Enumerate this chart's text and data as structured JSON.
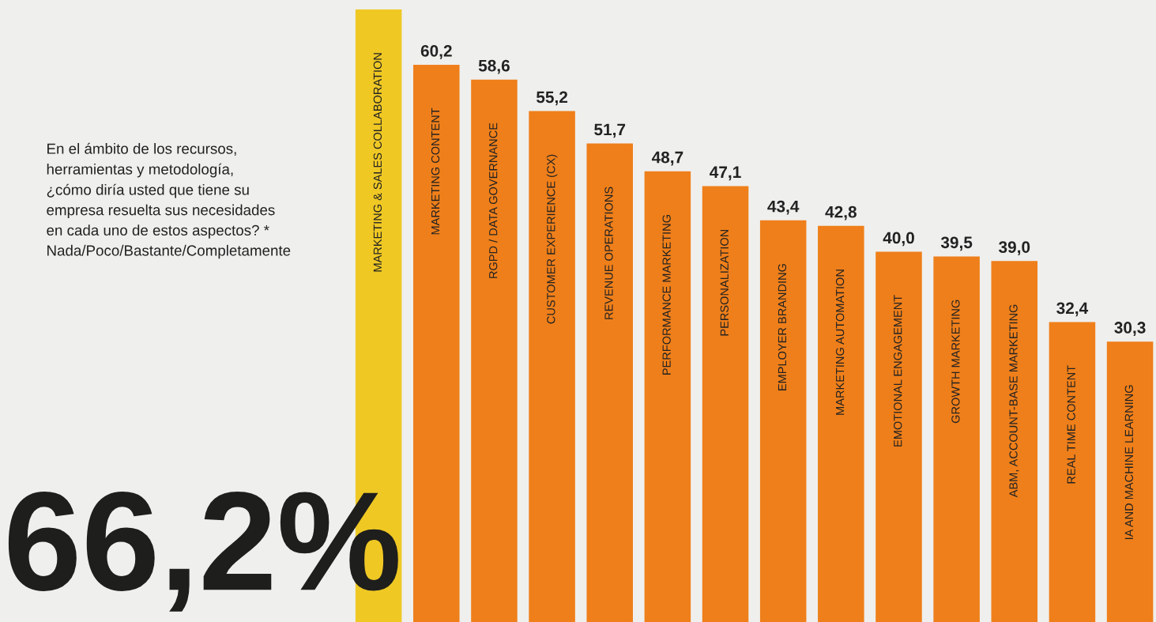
{
  "chart_data": {
    "type": "bar",
    "title": "En el ámbito de los recursos,\nherramientas y metodología,\n¿cómo diría usted que tiene su\nempresa resuelta sus necesidades\nen cada uno de estos aspectos? *\nNada/Poco/Bastante/Completamente",
    "categories": [
      "MARKETING & SALES COLLABORATION",
      "MARKETING CONTENT",
      "RGPD / DATA GOVERNANCE",
      "CUSTOMER EXPERIENCE (CX)",
      "REVENUE OPERATIONS",
      "PERFORMANCE MARKETING",
      "PERSONALIZATION",
      "EMPLOYER BRANDING",
      "MARKETING AUTOMATION",
      "EMOTIONAL ENGAGEMENT",
      "GROWTH MARKETING",
      "ABM, ACCOUNT-BASE MARKETING",
      "REAL TIME CONTENT",
      "IA AND MACHINE LEARNING"
    ],
    "values": [
      66.2,
      60.2,
      58.6,
      55.2,
      51.7,
      48.7,
      47.1,
      43.4,
      42.8,
      40.0,
      39.5,
      39.0,
      32.4,
      30.3
    ],
    "colors": [
      "#efc824",
      "#ef7f1a",
      "#ef7f1a",
      "#ef7f1a",
      "#ef7f1a",
      "#ef7f1a",
      "#ef7f1a",
      "#ef7f1a",
      "#ef7f1a",
      "#ef7f1a",
      "#ef7f1a",
      "#ef7f1a",
      "#ef7f1a",
      "#ef7f1a"
    ],
    "value_labels": [
      null,
      "60,2",
      "58,6",
      "55,2",
      "51,7",
      "48,7",
      "47,1",
      "43,4",
      "42,8",
      "40,0",
      "39,5",
      "39,0",
      "32,4",
      "30,3"
    ],
    "annotations": [
      "66,2%"
    ],
    "legend": false
  }
}
